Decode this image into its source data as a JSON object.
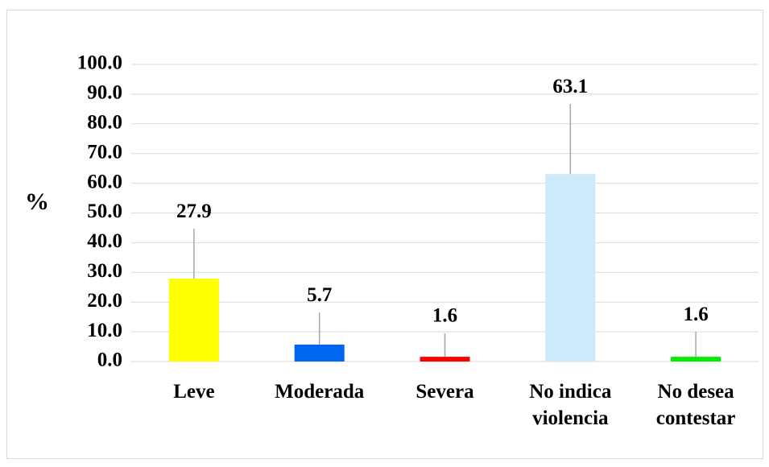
{
  "chart_data": {
    "type": "bar",
    "y_label": "%",
    "categories": [
      [
        "Leve"
      ],
      [
        "Moderada"
      ],
      [
        "Severa"
      ],
      [
        "No indica",
        "violencia"
      ],
      [
        "No desea",
        "contestar"
      ]
    ],
    "values": [
      27.9,
      5.7,
      1.6,
      63.1,
      1.6
    ],
    "errors": [
      16.8,
      10.8,
      7.9,
      23.6,
      8.4
    ],
    "colors": [
      "#ffff00",
      "#0066ee",
      "#ff0000",
      "#cdeafb",
      "#00ee00"
    ],
    "ylim": [
      0,
      100
    ],
    "yticks": [
      {
        "value": 0,
        "label": "0.0"
      },
      {
        "value": 10,
        "label": "10.0"
      },
      {
        "value": 20,
        "label": "20.0"
      },
      {
        "value": 30,
        "label": "30.0"
      },
      {
        "value": 40,
        "label": "40.0"
      },
      {
        "value": 50,
        "label": "50.0"
      },
      {
        "value": 60,
        "label": "60.0"
      },
      {
        "value": 70,
        "label": "70.0"
      },
      {
        "value": 80,
        "label": "80.0"
      },
      {
        "value": 90,
        "label": "90.0"
      },
      {
        "value": 100,
        "label": "100.0"
      }
    ],
    "grid": true
  }
}
